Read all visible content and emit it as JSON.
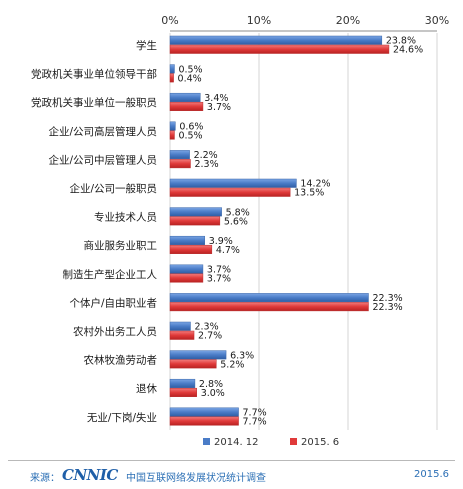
{
  "chart_data": {
    "type": "bar",
    "orientation": "horizontal",
    "xlim": [
      0,
      30
    ],
    "ticks": [
      "0%",
      "10%",
      "20%",
      "30%"
    ],
    "tick_values": [
      0,
      10,
      20,
      30
    ],
    "unit": "%",
    "categories": [
      "学生",
      "党政机关事业单位领导干部",
      "党政机关事业单位一般职员",
      "企业/公司高层管理人员",
      "企业/公司中层管理人员",
      "企业/公司一般职员",
      "专业技术人员",
      "商业服务业职工",
      "制造生产型企业工人",
      "个体户/自由职业者",
      "农村外出务工人员",
      "农林牧渔劳动者",
      "退休",
      "无业/下岗/失业"
    ],
    "series": [
      {
        "name": "2014. 12",
        "color": "#4a7cc7",
        "values": [
          23.8,
          0.5,
          3.4,
          0.6,
          2.2,
          14.2,
          5.8,
          3.9,
          3.7,
          22.3,
          2.3,
          6.3,
          2.8,
          7.7
        ]
      },
      {
        "name": "2015. 6",
        "color": "#e03a3a",
        "values": [
          24.6,
          0.4,
          3.7,
          0.5,
          2.3,
          13.5,
          5.6,
          4.7,
          3.7,
          22.3,
          2.7,
          5.2,
          3.0,
          7.7
        ]
      }
    ],
    "grid": true,
    "legend": "bottom-center"
  },
  "footer": {
    "source_label": "来源：",
    "logo": "CNNIC",
    "org": "中国互联网络发展状况统计调查",
    "date": "2015.6"
  }
}
